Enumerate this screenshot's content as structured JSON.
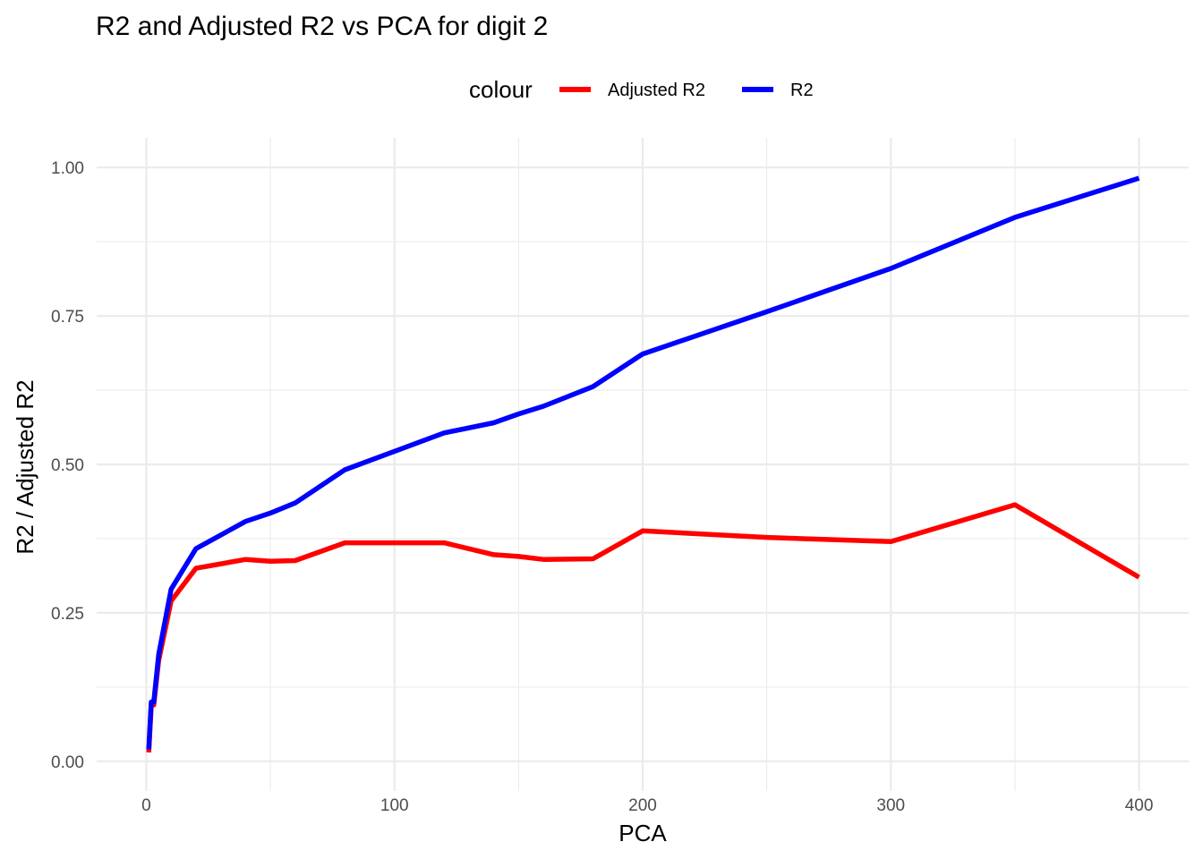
{
  "chart_data": {
    "type": "line",
    "title": "R2 and Adjusted R2 vs PCA for digit 2",
    "xlabel": "PCA",
    "ylabel": "R2 / Adjusted R2",
    "xlim": [
      -20,
      420
    ],
    "ylim": [
      -0.05,
      1.05
    ],
    "x_ticks": [
      0,
      100,
      200,
      300,
      400
    ],
    "x_tick_labels": [
      "0",
      "100",
      "200",
      "300",
      "400"
    ],
    "x_minor_ticks": [
      50,
      150,
      250,
      350
    ],
    "y_ticks": [
      0,
      0.25,
      0.5,
      0.75,
      1.0
    ],
    "y_tick_labels": [
      "0.00",
      "0.25",
      "0.50",
      "0.75",
      "1.00"
    ],
    "y_minor_ticks": [
      0.125,
      0.375,
      0.625,
      0.875
    ],
    "grid": true,
    "legend": {
      "title": "colour",
      "position": "top"
    },
    "series": [
      {
        "name": "Adjusted R2",
        "color": "#ff0000",
        "x": [
          1,
          2,
          3,
          5,
          10,
          20,
          40,
          50,
          60,
          80,
          100,
          120,
          140,
          150,
          160,
          180,
          200,
          250,
          300,
          350,
          400
        ],
        "y": [
          0.015,
          0.095,
          0.095,
          0.17,
          0.27,
          0.325,
          0.34,
          0.337,
          0.338,
          0.368,
          0.368,
          0.368,
          0.348,
          0.345,
          0.34,
          0.341,
          0.388,
          0.377,
          0.37,
          0.432,
          0.31
        ]
      },
      {
        "name": "R2",
        "color": "#0000ff",
        "x": [
          1,
          2,
          3,
          5,
          10,
          20,
          40,
          50,
          60,
          80,
          100,
          120,
          140,
          150,
          160,
          180,
          200,
          250,
          300,
          350,
          400
        ],
        "y": [
          0.02,
          0.1,
          0.1,
          0.18,
          0.29,
          0.358,
          0.404,
          0.418,
          0.435,
          0.491,
          0.522,
          0.553,
          0.57,
          0.585,
          0.598,
          0.631,
          0.686,
          0.757,
          0.83,
          0.916,
          0.982
        ]
      }
    ]
  }
}
